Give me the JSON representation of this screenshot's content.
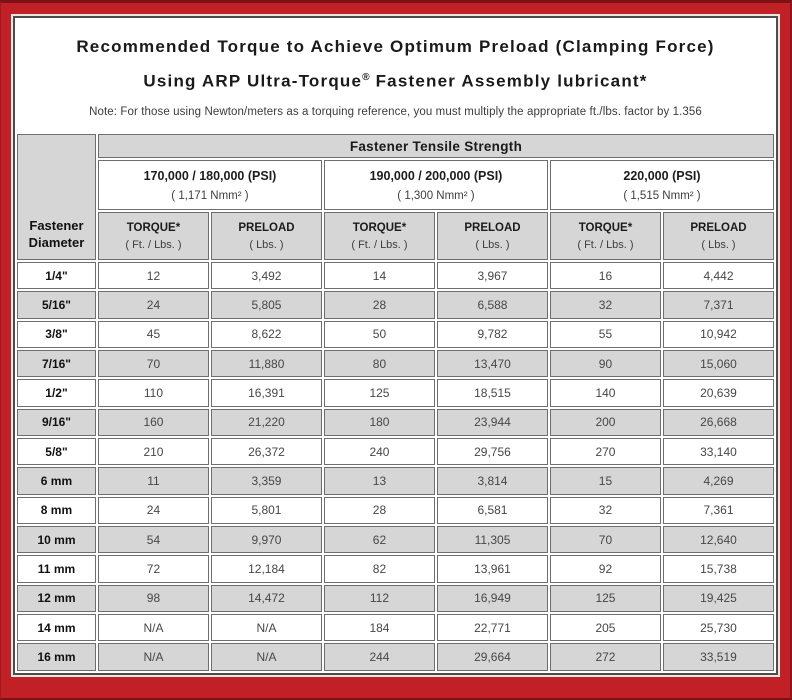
{
  "title": {
    "line1": "Recommended Torque to Achieve Optimum Preload (Clamping Force)",
    "line2_pre": "Using ARP Ultra-Torque",
    "line2_sup": "®",
    "line2_post": " Fastener Assembly lubricant*"
  },
  "note": "Note: For those using Newton/meters as a torquing reference, you must multiply the appropriate ft./lbs. factor by 1.356",
  "table": {
    "corner_header": "Fastener Diameter",
    "tensile_header": "Fastener Tensile Strength",
    "groups": [
      {
        "psi": "170,000 / 180,000 (PSI)",
        "nmm": "( 1,171 Nmm² )"
      },
      {
        "psi": "190,000 / 200,000 (PSI)",
        "nmm": "( 1,300 Nmm² )"
      },
      {
        "psi": "220,000 (PSI)",
        "nmm": "( 1,515 Nmm² )"
      }
    ],
    "sub": {
      "torque": "TORQUE*",
      "torque_unit": "( Ft. / Lbs. )",
      "preload": "PRELOAD",
      "preload_unit": "( Lbs. )"
    },
    "rows": [
      {
        "diameter": "1/4\"",
        "values": [
          "12",
          "3,492",
          "14",
          "3,967",
          "16",
          "4,442"
        ]
      },
      {
        "diameter": "5/16\"",
        "values": [
          "24",
          "5,805",
          "28",
          "6,588",
          "32",
          "7,371"
        ]
      },
      {
        "diameter": "3/8\"",
        "values": [
          "45",
          "8,622",
          "50",
          "9,782",
          "55",
          "10,942"
        ]
      },
      {
        "diameter": "7/16\"",
        "values": [
          "70",
          "11,880",
          "80",
          "13,470",
          "90",
          "15,060"
        ]
      },
      {
        "diameter": "1/2\"",
        "values": [
          "110",
          "16,391",
          "125",
          "18,515",
          "140",
          "20,639"
        ]
      },
      {
        "diameter": "9/16\"",
        "values": [
          "160",
          "21,220",
          "180",
          "23,944",
          "200",
          "26,668"
        ]
      },
      {
        "diameter": "5/8\"",
        "values": [
          "210",
          "26,372",
          "240",
          "29,756",
          "270",
          "33,140"
        ]
      },
      {
        "diameter": "6 mm",
        "values": [
          "11",
          "3,359",
          "13",
          "3,814",
          "15",
          "4,269"
        ]
      },
      {
        "diameter": "8 mm",
        "values": [
          "24",
          "5,801",
          "28",
          "6,581",
          "32",
          "7,361"
        ]
      },
      {
        "diameter": "10 mm",
        "values": [
          "54",
          "9,970",
          "62",
          "11,305",
          "70",
          "12,640"
        ]
      },
      {
        "diameter": "11 mm",
        "values": [
          "72",
          "12,184",
          "82",
          "13,961",
          "92",
          "15,738"
        ]
      },
      {
        "diameter": "12 mm",
        "values": [
          "98",
          "14,472",
          "112",
          "16,949",
          "125",
          "19,425"
        ]
      },
      {
        "diameter": "14 mm",
        "values": [
          "N/A",
          "N/A",
          "184",
          "22,771",
          "205",
          "25,730"
        ]
      },
      {
        "diameter": "16 mm",
        "values": [
          "N/A",
          "N/A",
          "244",
          "29,664",
          "272",
          "33,519"
        ]
      }
    ]
  },
  "colors": {
    "frame_red": "#c22027",
    "frame_dark_red": "#7c1118",
    "cell_gray": "#d6d6d6",
    "cell_border": "#6e6e6e",
    "panel_border": "#4c4c4c"
  }
}
